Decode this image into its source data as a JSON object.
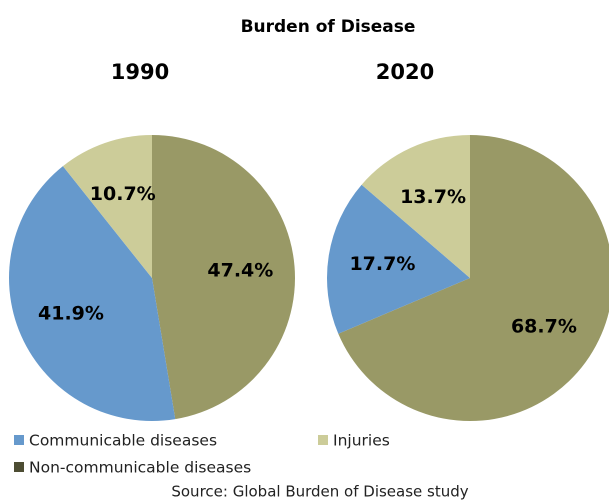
{
  "title": "Burden of Disease",
  "source": "Source: Global Burden of Disease study",
  "chart_data": [
    {
      "type": "pie",
      "title": "1990",
      "categories": [
        "Non-communicable diseases",
        "Communicable diseases",
        "Injuries"
      ],
      "values": [
        47.4,
        41.9,
        10.7
      ],
      "value_labels": [
        "47.4%",
        "41.9%",
        "10.7%"
      ],
      "colors": [
        "#999966",
        "#6699cc",
        "#cccc99"
      ]
    },
    {
      "type": "pie",
      "title": "2020",
      "categories": [
        "Non-communicable diseases",
        "Communicable diseases",
        "Injuries"
      ],
      "values": [
        68.7,
        17.7,
        13.7
      ],
      "value_labels": [
        "68.7%",
        "17.7%",
        "13.7%"
      ],
      "colors": [
        "#999966",
        "#6699cc",
        "#cccc99"
      ]
    }
  ]
}
